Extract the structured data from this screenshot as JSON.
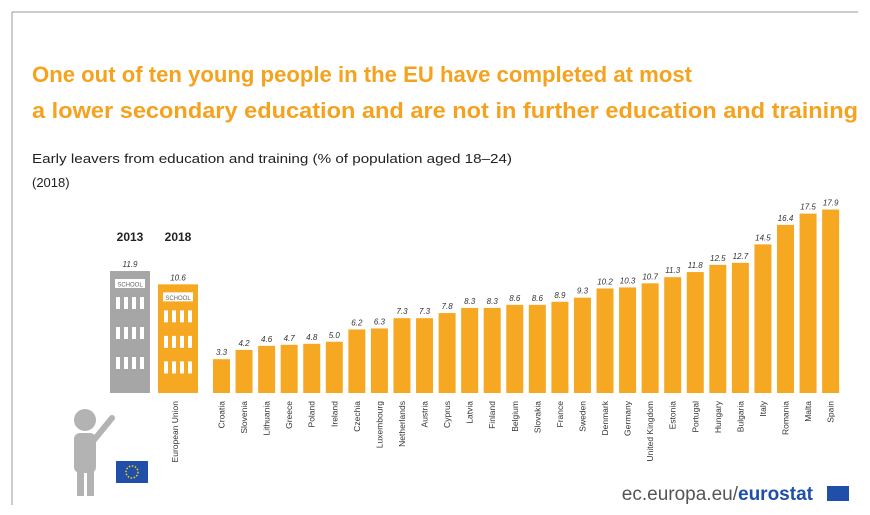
{
  "chart_data": {
    "type": "bar",
    "title": [
      "One out of ten young people in the EU have completed at most",
      "a lower secondary education and are not in further education and training"
    ],
    "subtitle": "Early leavers from education and training (% of population aged 18–24)",
    "subtitle_year": "(2018)",
    "categories": [
      "Croatia",
      "Slovenia",
      "Lithuania",
      "Greece",
      "Poland",
      "Ireland",
      "Czechia",
      "Luxembourg",
      "Netherlands",
      "Austria",
      "Cyprus",
      "Latvia",
      "Finland",
      "Belgium",
      "Slovakia",
      "France",
      "Sweden",
      "Denmark",
      "Germany",
      "United Kingdom",
      "Estonia",
      "Portugal",
      "Hungary",
      "Bulgaria",
      "Italy",
      "Romania",
      "Malta",
      "Spain"
    ],
    "values": [
      3.3,
      4.2,
      4.6,
      4.7,
      4.8,
      5.0,
      6.2,
      6.3,
      7.3,
      7.3,
      7.8,
      8.3,
      8.3,
      8.6,
      8.6,
      8.9,
      9.3,
      10.2,
      10.3,
      10.7,
      11.3,
      11.8,
      12.5,
      12.7,
      14.5,
      16.4,
      17.5,
      17.9
    ],
    "value_labels": [
      "3.3",
      "4.2",
      "4.6",
      "4.7",
      "4.8",
      "5.0",
      "6.2",
      "6.3",
      "7.3",
      "7.3",
      "7.8",
      "8.3",
      "8.3",
      "8.6",
      "8.6",
      "8.9",
      "9.3",
      "10.2",
      "10.3",
      "10.7",
      "11.3",
      "11.8",
      "12.5",
      "12.7",
      "14.5",
      "16.4",
      "17.5",
      "17.9"
    ],
    "color": "#f7a823",
    "eu": {
      "name": "European Union",
      "years": [
        "2013",
        "2018"
      ],
      "values": [
        11.9,
        10.6
      ],
      "colors": [
        "#a6a6a6",
        "#f7a823"
      ],
      "sign": "SCHOOL"
    },
    "source_url": "ec.europa.eu/",
    "source_brand": "eurostat"
  }
}
